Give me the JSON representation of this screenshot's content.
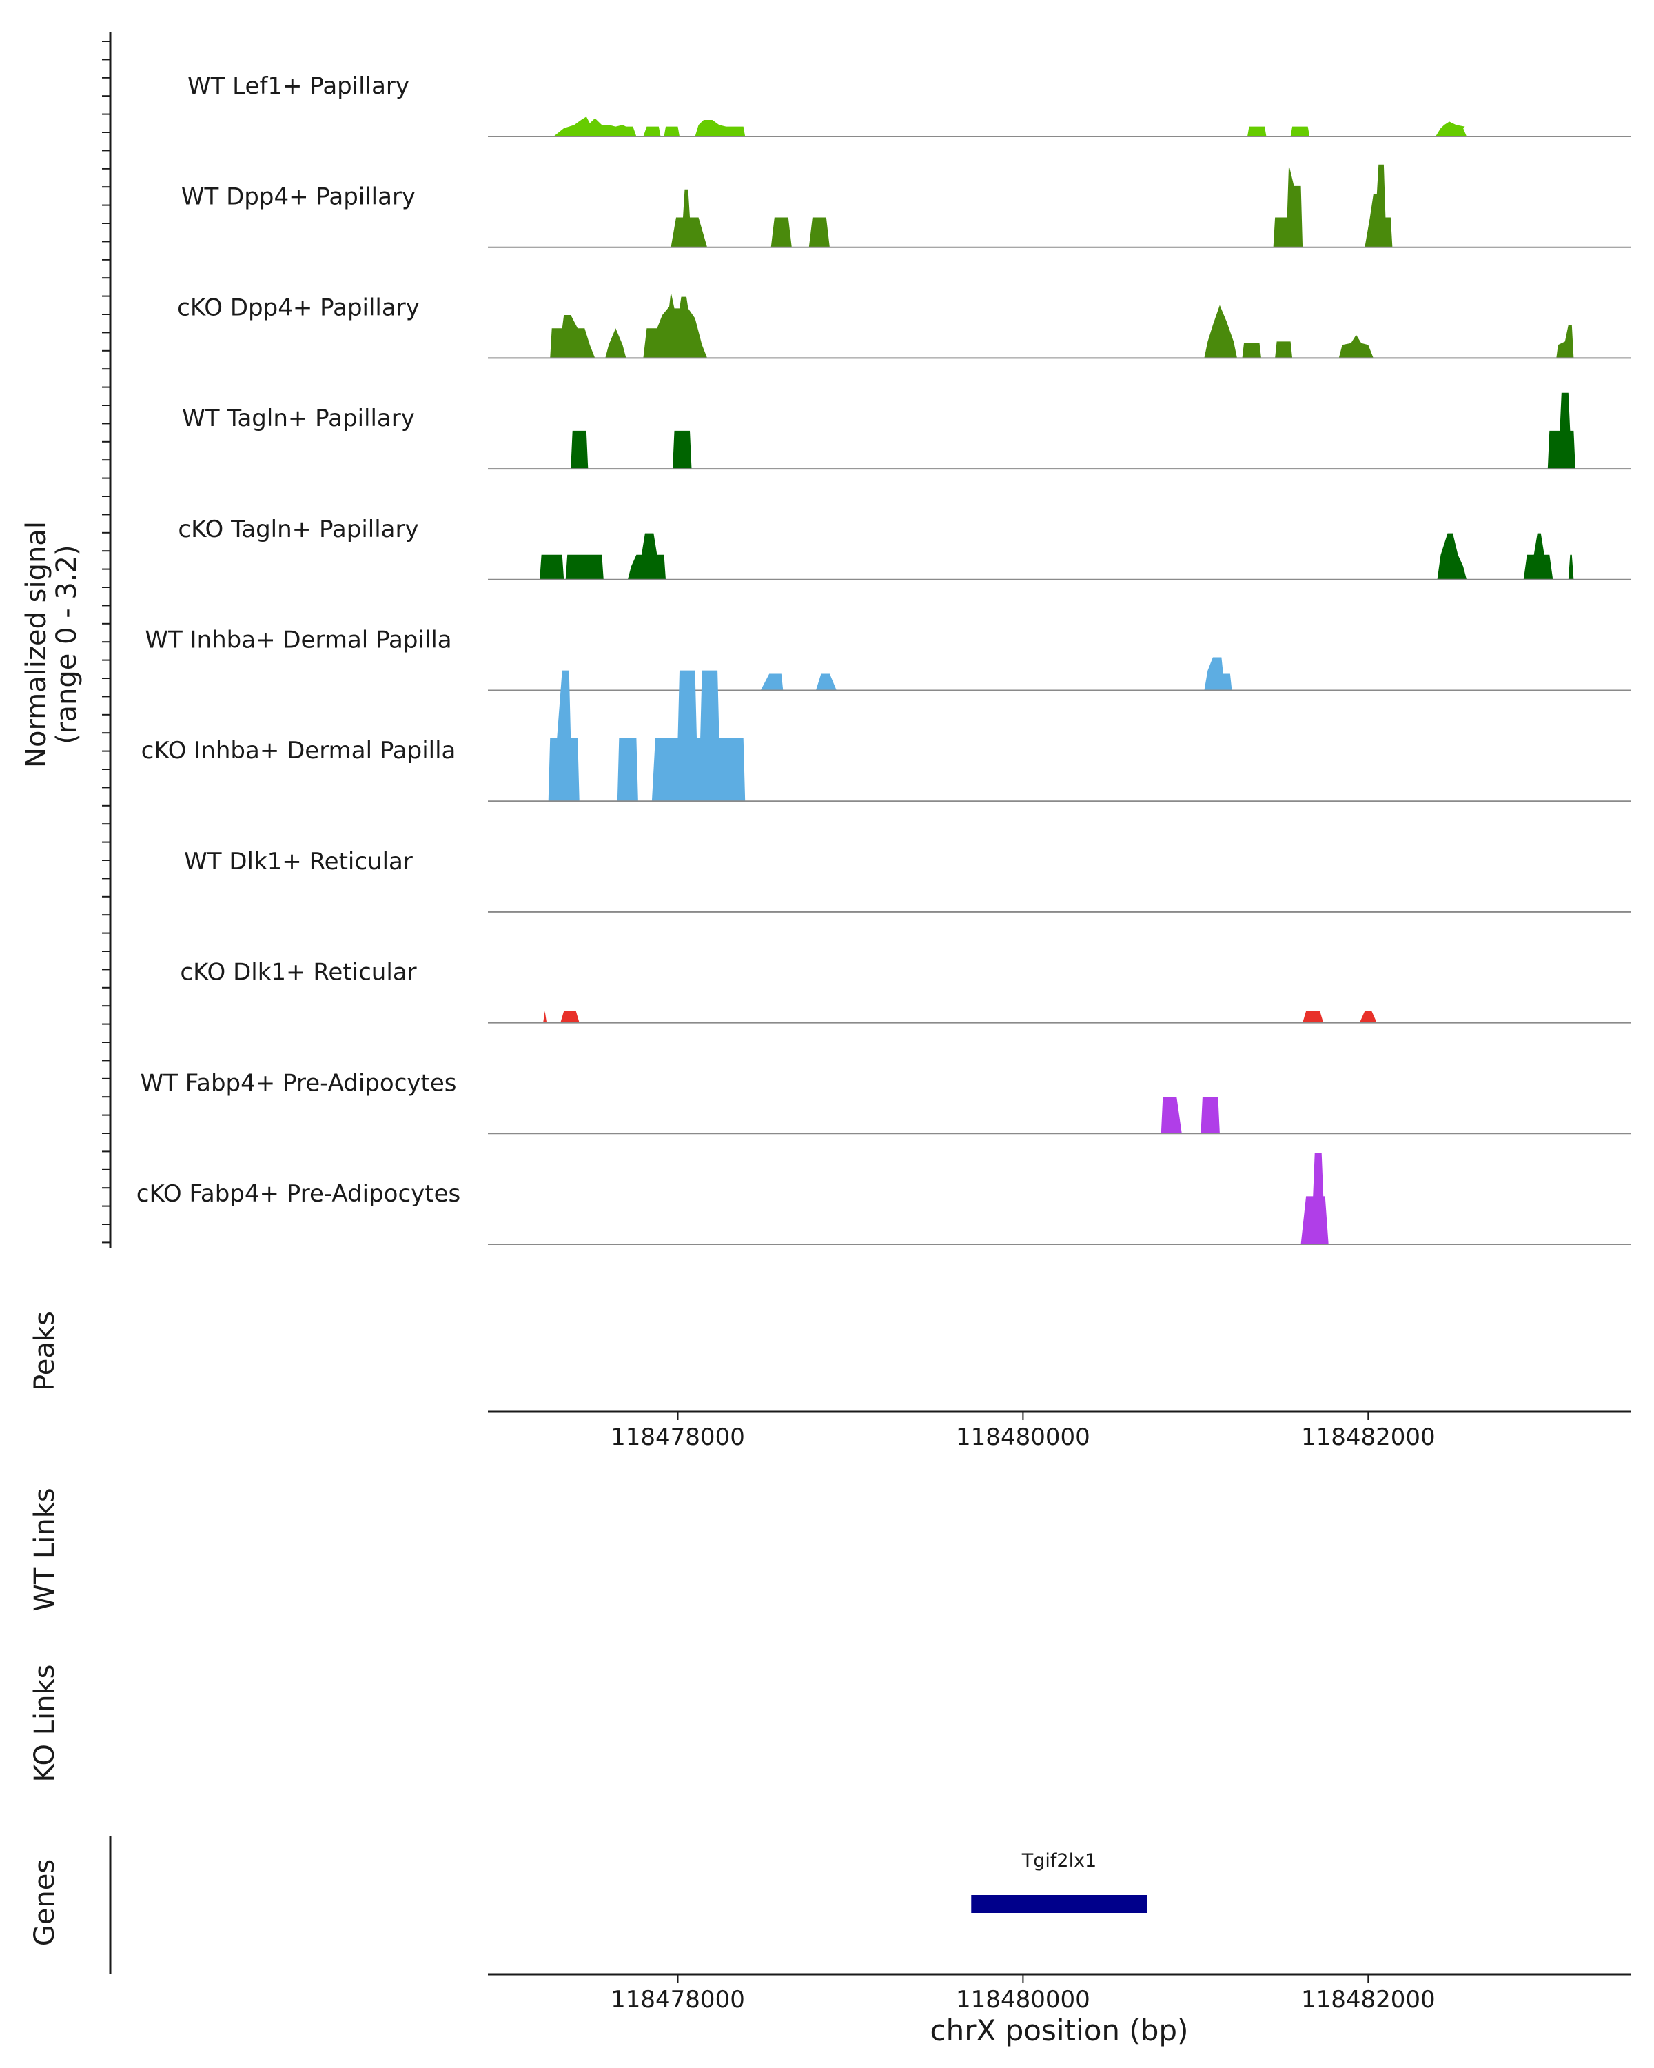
{
  "chart_data": {
    "type": "area",
    "title": "",
    "chromosome": "chrX",
    "xlabel": "chrX position (bp)",
    "ylabel_line1": "Normalized signal",
    "ylabel_line2": "(range 0 - 3.2)",
    "y_range": [
      0,
      3.2
    ],
    "xlim": [
      118476900,
      118483520
    ],
    "x_ticks": [
      118478000,
      118480000,
      118482000
    ],
    "x_tick_labels": [
      "118478000",
      "118480000",
      "118482000"
    ],
    "track_labels": {
      "peaks": "Peaks",
      "wt_links": "WT Links",
      "ko_links": "KO Links",
      "genes": "Genes"
    },
    "series": [
      {
        "name": "WT Lef1+ Papillary",
        "color": "#66cc00",
        "points": [
          [
            118477280,
            0
          ],
          [
            118477340,
            0.25
          ],
          [
            118477400,
            0.35
          ],
          [
            118477440,
            0.5
          ],
          [
            118477470,
            0.6
          ],
          [
            118477490,
            0.4
          ],
          [
            118477520,
            0.55
          ],
          [
            118477560,
            0.35
          ],
          [
            118477600,
            0.35
          ],
          [
            118477640,
            0.3
          ],
          [
            118477680,
            0.35
          ],
          [
            118477700,
            0.3
          ],
          [
            118477740,
            0.3
          ],
          [
            118477760,
            0
          ],
          [
            118477800,
            0
          ],
          [
            118477820,
            0.3
          ],
          [
            118477890,
            0.3
          ],
          [
            118477900,
            0
          ],
          [
            118477920,
            0
          ],
          [
            118477930,
            0.3
          ],
          [
            118478000,
            0.3
          ],
          [
            118478010,
            0
          ],
          [
            118478100,
            0
          ],
          [
            118478120,
            0.35
          ],
          [
            118478150,
            0.5
          ],
          [
            118478200,
            0.5
          ],
          [
            118478240,
            0.35
          ],
          [
            118478280,
            0.3
          ],
          [
            118478380,
            0.3
          ],
          [
            118478390,
            0
          ],
          [
            118481300,
            0
          ],
          [
            118481310,
            0.3
          ],
          [
            118481400,
            0.3
          ],
          [
            118481410,
            0
          ],
          [
            118481550,
            0
          ],
          [
            118481560,
            0.3
          ],
          [
            118481650,
            0.3
          ],
          [
            118481660,
            0
          ],
          [
            118482390,
            0
          ],
          [
            118482420,
            0.25
          ],
          [
            118482440,
            0.35
          ],
          [
            118482470,
            0.45
          ],
          [
            118482510,
            0.35
          ],
          [
            118482560,
            0.3
          ],
          [
            118482550,
            0.25
          ],
          [
            118482570,
            0
          ]
        ]
      },
      {
        "name": "WT Dpp4+ Papillary",
        "color": "#4a8a0c",
        "points": [
          [
            118477960,
            0
          ],
          [
            118477990,
            0.9
          ],
          [
            118478030,
            0.9
          ],
          [
            118478040,
            1.75
          ],
          [
            118478060,
            1.75
          ],
          [
            118478070,
            0.9
          ],
          [
            118478120,
            0.9
          ],
          [
            118478170,
            0
          ],
          [
            118478540,
            0
          ],
          [
            118478560,
            0.9
          ],
          [
            118478640,
            0.9
          ],
          [
            118478660,
            0
          ],
          [
            118478760,
            0
          ],
          [
            118478780,
            0.9
          ],
          [
            118478860,
            0.9
          ],
          [
            118478880,
            0
          ],
          [
            118481450,
            0
          ],
          [
            118481460,
            0.9
          ],
          [
            118481530,
            0.9
          ],
          [
            118481540,
            2.5
          ],
          [
            118481570,
            1.85
          ],
          [
            118481610,
            1.85
          ],
          [
            118481620,
            0
          ],
          [
            118481980,
            0
          ],
          [
            118482010,
            0.9
          ],
          [
            118482030,
            1.6
          ],
          [
            118482050,
            1.6
          ],
          [
            118482060,
            2.5
          ],
          [
            118482090,
            2.5
          ],
          [
            118482100,
            0.9
          ],
          [
            118482130,
            0.9
          ],
          [
            118482140,
            0
          ]
        ]
      },
      {
        "name": "cKO Dpp4+ Papillary",
        "color": "#4a8a0c",
        "points": [
          [
            118477260,
            0
          ],
          [
            118477270,
            0.9
          ],
          [
            118477330,
            0.9
          ],
          [
            118477340,
            1.3
          ],
          [
            118477380,
            1.3
          ],
          [
            118477420,
            0.9
          ],
          [
            118477460,
            0.9
          ],
          [
            118477490,
            0.4
          ],
          [
            118477520,
            0
          ],
          [
            118477580,
            0
          ],
          [
            118477600,
            0.4
          ],
          [
            118477640,
            0.9
          ],
          [
            118477680,
            0.4
          ],
          [
            118477700,
            0
          ],
          [
            118477800,
            0
          ],
          [
            118477820,
            0.9
          ],
          [
            118477880,
            0.9
          ],
          [
            118477910,
            1.3
          ],
          [
            118477950,
            1.55
          ],
          [
            118477960,
            2.0
          ],
          [
            118477980,
            1.5
          ],
          [
            118478010,
            1.5
          ],
          [
            118478020,
            1.85
          ],
          [
            118478050,
            1.85
          ],
          [
            118478060,
            1.5
          ],
          [
            118478100,
            1.2
          ],
          [
            118478140,
            0.4
          ],
          [
            118478170,
            0
          ],
          [
            118481050,
            0
          ],
          [
            118481070,
            0.5
          ],
          [
            118481100,
            1.0
          ],
          [
            118481140,
            1.6
          ],
          [
            118481180,
            1.1
          ],
          [
            118481220,
            0.5
          ],
          [
            118481240,
            0
          ],
          [
            118481270,
            0
          ],
          [
            118481280,
            0.45
          ],
          [
            118481370,
            0.45
          ],
          [
            118481380,
            0
          ],
          [
            118481460,
            0
          ],
          [
            118481470,
            0.5
          ],
          [
            118481550,
            0.5
          ],
          [
            118481560,
            0
          ],
          [
            118481830,
            0
          ],
          [
            118481850,
            0.4
          ],
          [
            118481900,
            0.45
          ],
          [
            118481930,
            0.7
          ],
          [
            118481960,
            0.45
          ],
          [
            118482000,
            0.4
          ],
          [
            118482030,
            0
          ],
          [
            118483090,
            0
          ],
          [
            118483100,
            0.4
          ],
          [
            118483140,
            0.5
          ],
          [
            118483160,
            1.0
          ],
          [
            118483180,
            1.0
          ],
          [
            118483190,
            0
          ]
        ]
      },
      {
        "name": "WT Tagln+ Papillary",
        "color": "#006400",
        "points": [
          [
            118477380,
            0
          ],
          [
            118477390,
            1.15
          ],
          [
            118477470,
            1.15
          ],
          [
            118477480,
            0
          ],
          [
            118477970,
            0
          ],
          [
            118477980,
            1.15
          ],
          [
            118478070,
            1.15
          ],
          [
            118478080,
            0
          ],
          [
            118483040,
            0
          ],
          [
            118483050,
            1.15
          ],
          [
            118483110,
            1.15
          ],
          [
            118483120,
            2.3
          ],
          [
            118483160,
            2.3
          ],
          [
            118483170,
            1.15
          ],
          [
            118483190,
            1.15
          ],
          [
            118483200,
            0
          ]
        ]
      },
      {
        "name": "cKO Tagln+ Papillary",
        "color": "#006400",
        "points": [
          [
            118477200,
            0
          ],
          [
            118477210,
            0.75
          ],
          [
            118477330,
            0.75
          ],
          [
            118477340,
            0
          ],
          [
            118477350,
            0
          ],
          [
            118477360,
            0.75
          ],
          [
            118477560,
            0.75
          ],
          [
            118477570,
            0
          ],
          [
            118477710,
            0
          ],
          [
            118477730,
            0.4
          ],
          [
            118477760,
            0.75
          ],
          [
            118477790,
            0.75
          ],
          [
            118477810,
            1.4
          ],
          [
            118477860,
            1.4
          ],
          [
            118477880,
            0.75
          ],
          [
            118477920,
            0.75
          ],
          [
            118477930,
            0
          ],
          [
            118482400,
            0
          ],
          [
            118482420,
            0.75
          ],
          [
            118482460,
            1.4
          ],
          [
            118482490,
            1.4
          ],
          [
            118482520,
            0.75
          ],
          [
            118482550,
            0.4
          ],
          [
            118482570,
            0
          ],
          [
            118482900,
            0
          ],
          [
            118482920,
            0.75
          ],
          [
            118482960,
            0.75
          ],
          [
            118482980,
            1.4
          ],
          [
            118483000,
            1.4
          ],
          [
            118483020,
            0.75
          ],
          [
            118482990,
            0.75
          ],
          [
            118483050,
            0.75
          ],
          [
            118483070,
            0
          ],
          [
            118483160,
            0
          ],
          [
            118483170,
            0.75
          ],
          [
            118483180,
            0.75
          ],
          [
            118483190,
            0
          ]
        ]
      },
      {
        "name": "WT Inhba+ Dermal Papilla",
        "color": "#5dade2",
        "points": [
          [
            118478480,
            0
          ],
          [
            118478530,
            0.5
          ],
          [
            118478600,
            0.5
          ],
          [
            118478610,
            0
          ],
          [
            118478800,
            0
          ],
          [
            118478830,
            0.5
          ],
          [
            118478880,
            0.5
          ],
          [
            118478920,
            0
          ],
          [
            118481050,
            0
          ],
          [
            118481070,
            0.6
          ],
          [
            118481100,
            1.0
          ],
          [
            118481150,
            1.0
          ],
          [
            118481160,
            0.5
          ],
          [
            118481200,
            0.5
          ],
          [
            118481210,
            0
          ]
        ]
      },
      {
        "name": "cKO Inhba+ Dermal Papilla",
        "color": "#5dade2",
        "points": [
          [
            118477250,
            0
          ],
          [
            118477260,
            1.9
          ],
          [
            118477300,
            1.9
          ],
          [
            118477330,
            3.95
          ],
          [
            118477370,
            3.95
          ],
          [
            118477380,
            1.9
          ],
          [
            118477420,
            1.9
          ],
          [
            118477430,
            0
          ],
          [
            118477650,
            0
          ],
          [
            118477660,
            1.9
          ],
          [
            118477760,
            1.9
          ],
          [
            118477770,
            0
          ],
          [
            118477850,
            0
          ],
          [
            118477870,
            1.9
          ],
          [
            118478000,
            1.9
          ],
          [
            118478010,
            3.95
          ],
          [
            118478100,
            3.95
          ],
          [
            118478110,
            1.9
          ],
          [
            118478130,
            1.9
          ],
          [
            118478140,
            3.95
          ],
          [
            118478230,
            3.95
          ],
          [
            118478240,
            1.9
          ],
          [
            118478380,
            1.9
          ],
          [
            118478390,
            0
          ]
        ]
      },
      {
        "name": "WT Dlk1+ Reticular",
        "color": "#3a3a3a",
        "points": []
      },
      {
        "name": "cKO Dlk1+ Reticular",
        "color": "#e8312a",
        "points": [
          [
            118477220,
            0
          ],
          [
            118477230,
            0.35
          ],
          [
            118477240,
            0
          ],
          [
            118477320,
            0
          ],
          [
            118477340,
            0.35
          ],
          [
            118477410,
            0.35
          ],
          [
            118477430,
            0
          ],
          [
            118481620,
            0
          ],
          [
            118481640,
            0.35
          ],
          [
            118481720,
            0.35
          ],
          [
            118481740,
            0
          ],
          [
            118481950,
            0
          ],
          [
            118481980,
            0.35
          ],
          [
            118482020,
            0.35
          ],
          [
            118482050,
            0
          ]
        ]
      },
      {
        "name": "WT Fabp4+ Pre-Adipocytes",
        "color": "#b03ee8",
        "points": [
          [
            118480800,
            0
          ],
          [
            118480810,
            1.1
          ],
          [
            118480890,
            1.1
          ],
          [
            118480920,
            0
          ],
          [
            118481030,
            0
          ],
          [
            118481040,
            1.1
          ],
          [
            118481130,
            1.1
          ],
          [
            118481140,
            0
          ]
        ]
      },
      {
        "name": "cKO Fabp4+ Pre-Adipocytes",
        "color": "#b03ee8",
        "points": [
          [
            118481610,
            0
          ],
          [
            118481640,
            1.45
          ],
          [
            118481680,
            1.45
          ],
          [
            118481690,
            2.75
          ],
          [
            118481730,
            2.75
          ],
          [
            118481740,
            1.45
          ],
          [
            118481750,
            1.45
          ],
          [
            118481770,
            0
          ]
        ]
      }
    ],
    "genes": [
      {
        "name": "Tgif2lx1",
        "start": 118479700,
        "end": 118480720,
        "color": "#00008b"
      }
    ]
  }
}
